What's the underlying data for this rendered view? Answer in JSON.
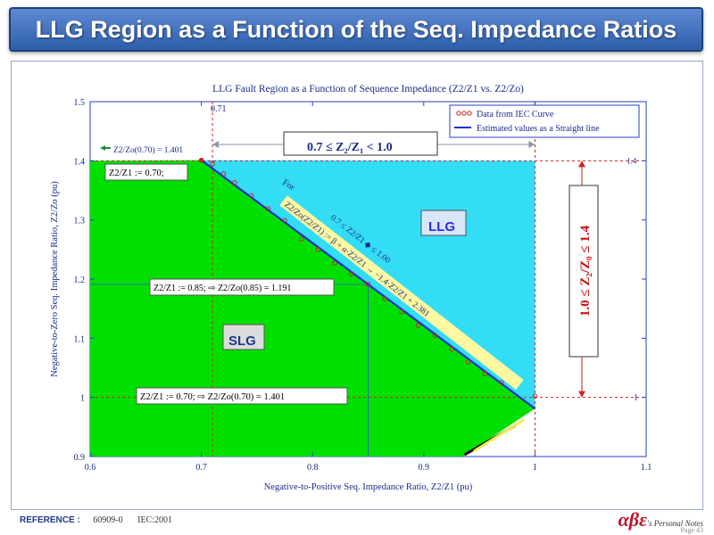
{
  "slide": {
    "title": "LLG Region as a Function of the Seq. Impedance Ratios",
    "footer_label": "REFERENCE :",
    "footer_ref1": "60909-0",
    "footer_ref2": "IEC:2001",
    "brand_symbol": "αβε",
    "brand_text": "'s Personal Notes",
    "page_label": "Page",
    "page_number": "43"
  },
  "chart_data": {
    "type": "scatter",
    "title": "LLG Fault Region as a Function of Sequence Impedance (Z2/Z1 vs. Z2/Zo)",
    "xlabel": "Negative-to-Positive Seq. Impedance Ratio, Z2/Z1 (pu)",
    "ylabel": "Negative-to-Zero Seq. Impedance Ratio, Z2/Zo (pu)",
    "xlim": [
      0.6,
      1.1
    ],
    "ylim": [
      0.9,
      1.5
    ],
    "xticks": [
      "0.6",
      "0.7",
      "0.8",
      "0.9",
      "1",
      "1.1"
    ],
    "yticks": [
      "0.9",
      "1",
      "1.1",
      "1.2",
      "1.3",
      "1.4",
      "1.5"
    ],
    "grid": false,
    "legend_position": "top-right",
    "series": [
      {
        "name": "Data from IEC Curve",
        "color": "#cc2222",
        "marker": "circle-open",
        "x": [
          0.7,
          0.71,
          0.72,
          0.73,
          0.745,
          0.76,
          0.775,
          0.79,
          0.805,
          0.82,
          0.835,
          0.85,
          0.865,
          0.88,
          0.895,
          0.91,
          0.925,
          0.94,
          0.955,
          0.97,
          1.0
        ],
        "y": [
          1.401,
          1.395,
          1.378,
          1.363,
          1.341,
          1.319,
          1.299,
          1.268,
          1.25,
          1.227,
          1.209,
          1.191,
          1.167,
          1.145,
          1.122,
          1.105,
          1.082,
          1.06,
          1.04,
          1.025,
          1.002
        ]
      },
      {
        "name": "Estimated values as a Straight line",
        "color": "#1a2fd0",
        "x": [
          0.7,
          1.0
        ],
        "y": [
          1.401,
          0.981
        ]
      }
    ],
    "regions": [
      {
        "name": "SLG",
        "color": "#00e000"
      },
      {
        "name": "LLG",
        "color": "#33ddf5"
      }
    ],
    "annotations": {
      "ref_line_x": "0.71",
      "right_14": "1.4",
      "right_1": "1",
      "top_range": "0.7 ≤ Z₂/Z₁ < 1.0",
      "side_range": "1.0 ≤ Z₂/Z₀ ≤ 1.4",
      "z2zo_070": "Z2/Zo(0.70) = 1.401",
      "z2z1_070": "Z2/Z1 := 0.70;",
      "mid_a": "Z2/Z1 := 0.85;",
      "mid_b": "Z2/Zo(0.85) = 1.191",
      "bot_a": "Z2/Z1 := 0.70;",
      "bot_b": "Z2/Zo(0.70) = 1.401",
      "for_text": "For",
      "cond_text": "0.7 ≤ Z2/Z1 ◆ ≤ 1.00",
      "eqn_text": "Z2/Zo(Z2/Z1) := β + α·Z2/Z1 → −1.4·Z2/Z1 + 2.381",
      "llg_label": "LLG",
      "slg_label": "SLG"
    }
  }
}
